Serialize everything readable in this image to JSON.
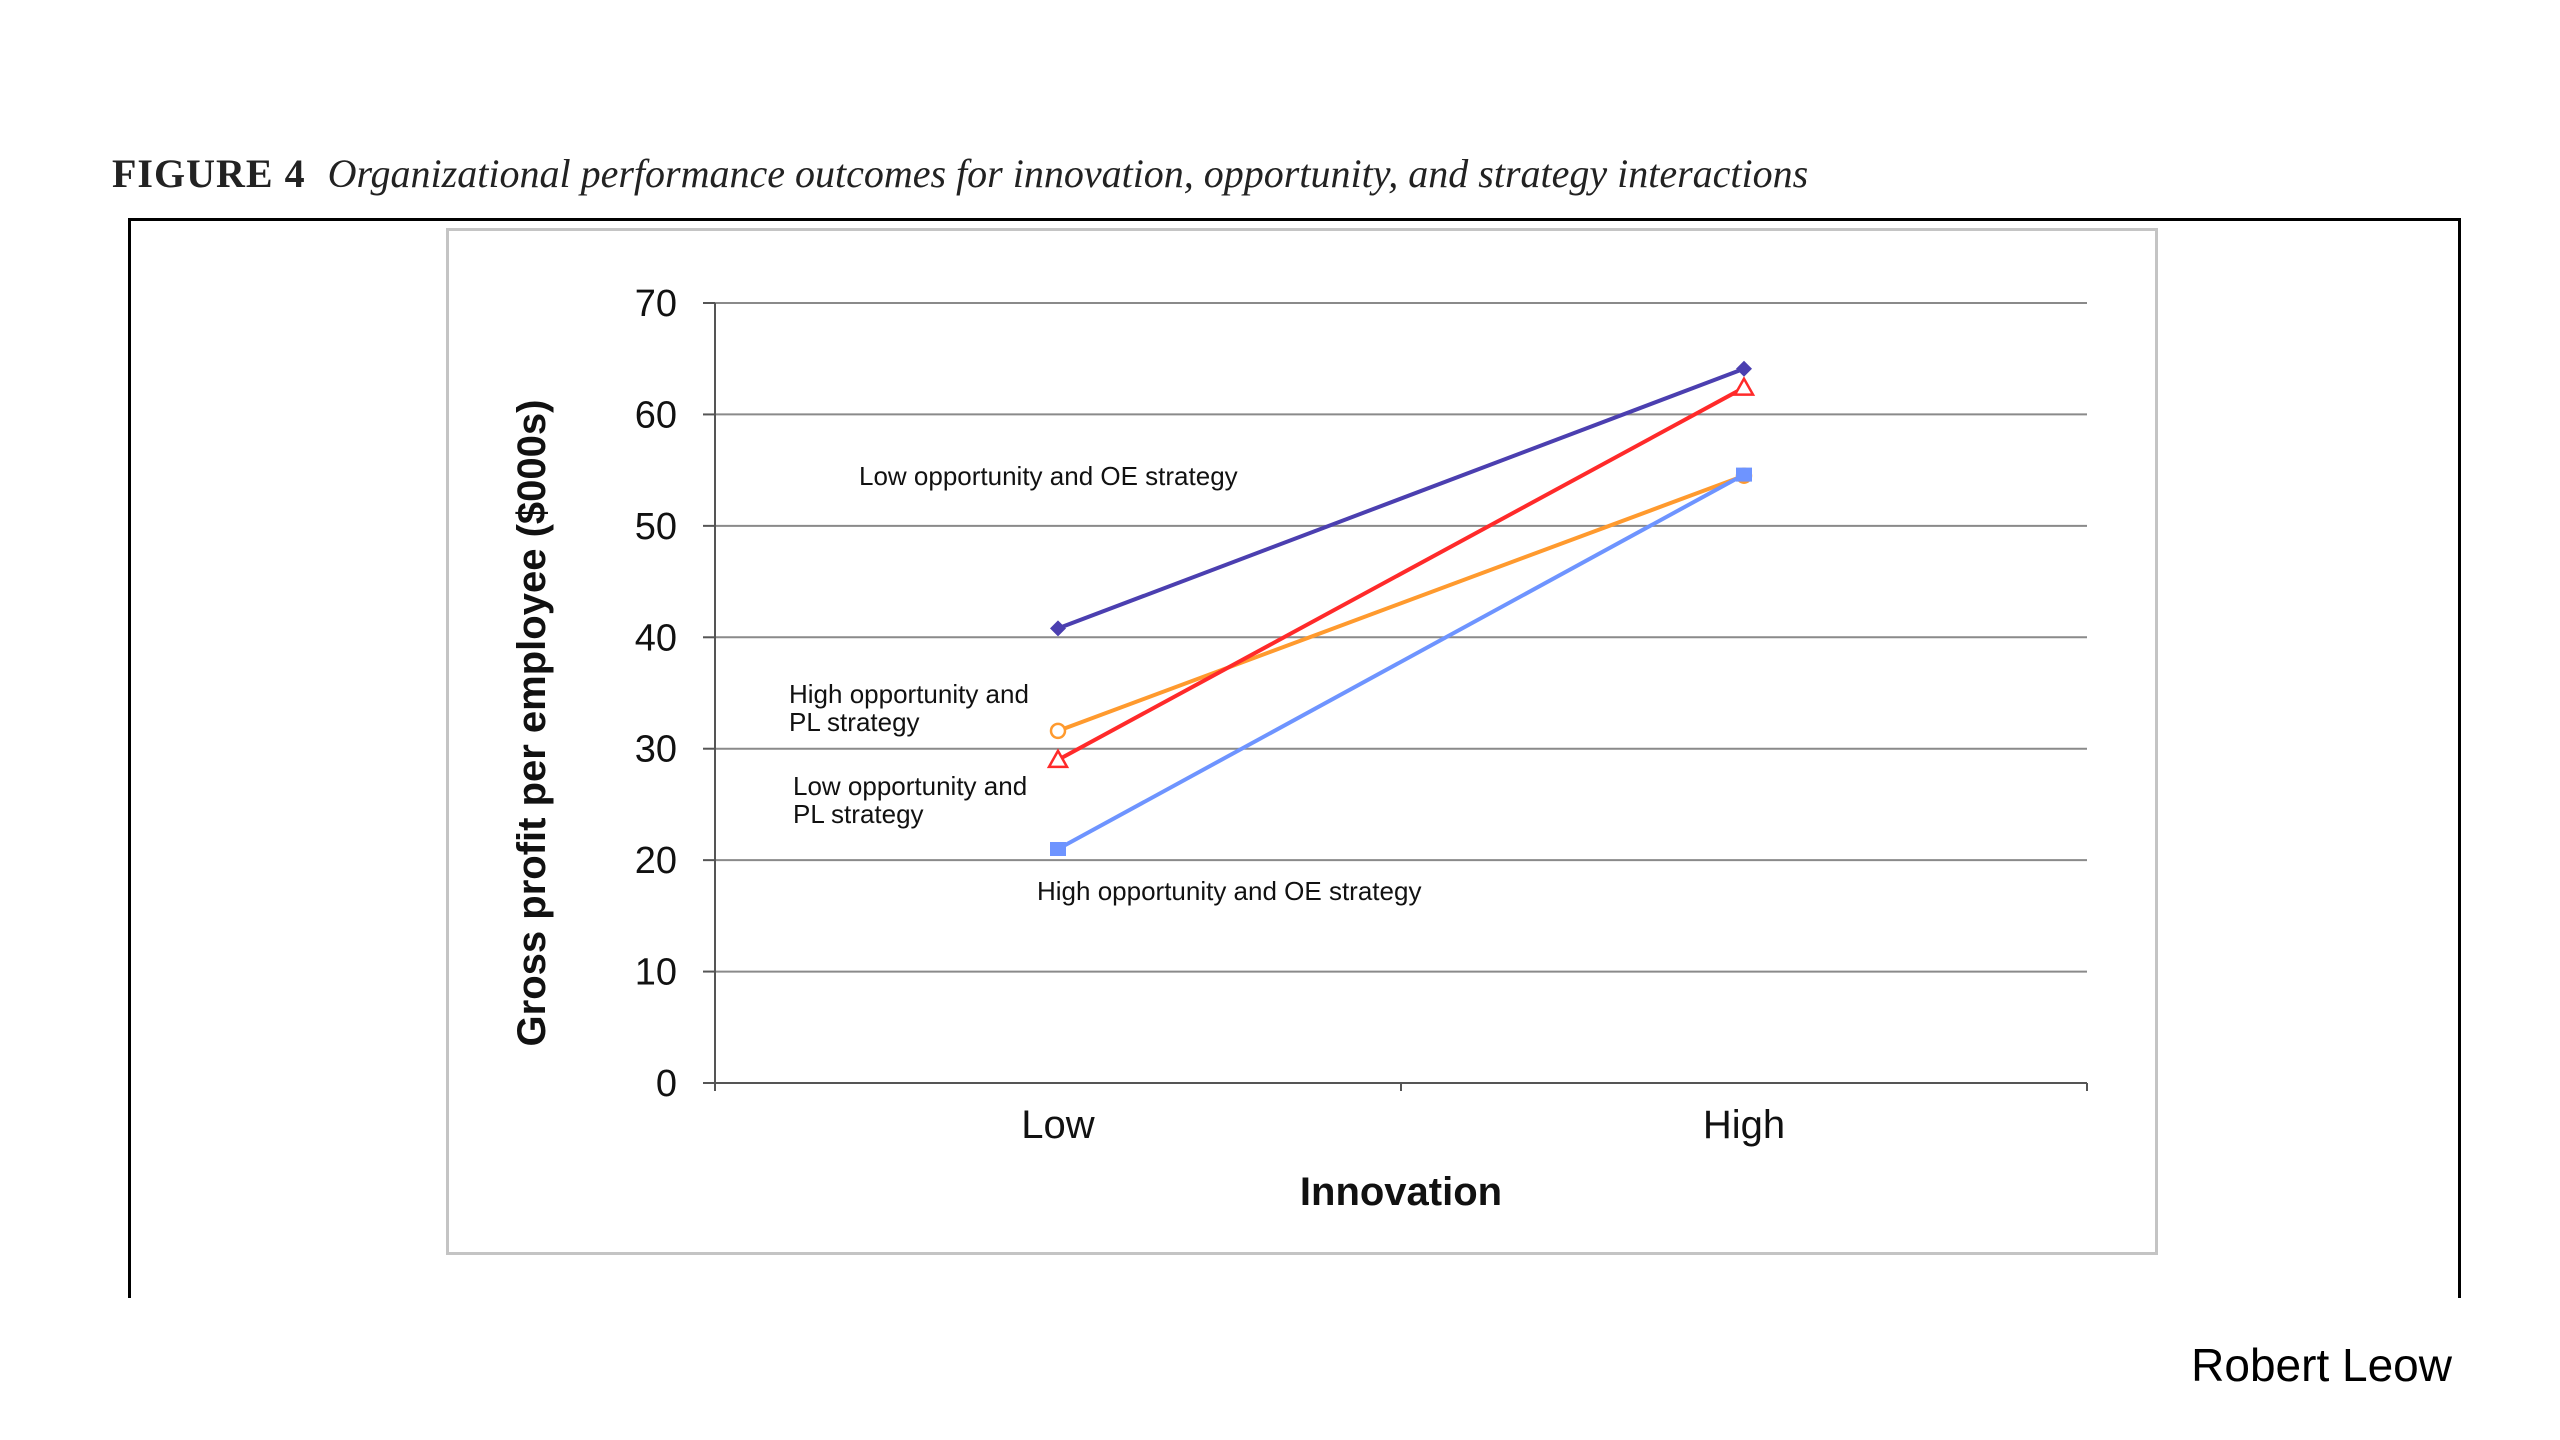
{
  "figure": {
    "label": "FIGURE 4",
    "caption": "Organizational performance outcomes for innovation, opportunity, and strategy interactions"
  },
  "author": "Robert Leow",
  "chart_data": {
    "type": "line",
    "title": "",
    "xlabel": "Innovation",
    "ylabel": "Gross profit per employee ($000s)",
    "categories": [
      "Low",
      "High"
    ],
    "ylim": [
      0,
      70
    ],
    "yticks": [
      "0",
      "10",
      "20",
      "30",
      "40",
      "50",
      "60",
      "70"
    ],
    "grid": true,
    "series": [
      {
        "name": "Low opportunity  and OE strategy",
        "values": [
          40.8,
          64.1
        ],
        "color": "#4b3fb0",
        "marker": "diamond"
      },
      {
        "name": "High opportunity  and PL strategy",
        "values": [
          31.6,
          54.5
        ],
        "color": "#ff9a2e",
        "marker": "circle-open"
      },
      {
        "name": "Low opportunity  and PL strategy",
        "values": [
          29.0,
          62.4
        ],
        "color": "#ff2a2a",
        "marker": "triangle-open"
      },
      {
        "name": "High opportunity  and OE strategy",
        "values": [
          21.0,
          54.6
        ],
        "color": "#6e94ff",
        "marker": "square"
      }
    ]
  }
}
